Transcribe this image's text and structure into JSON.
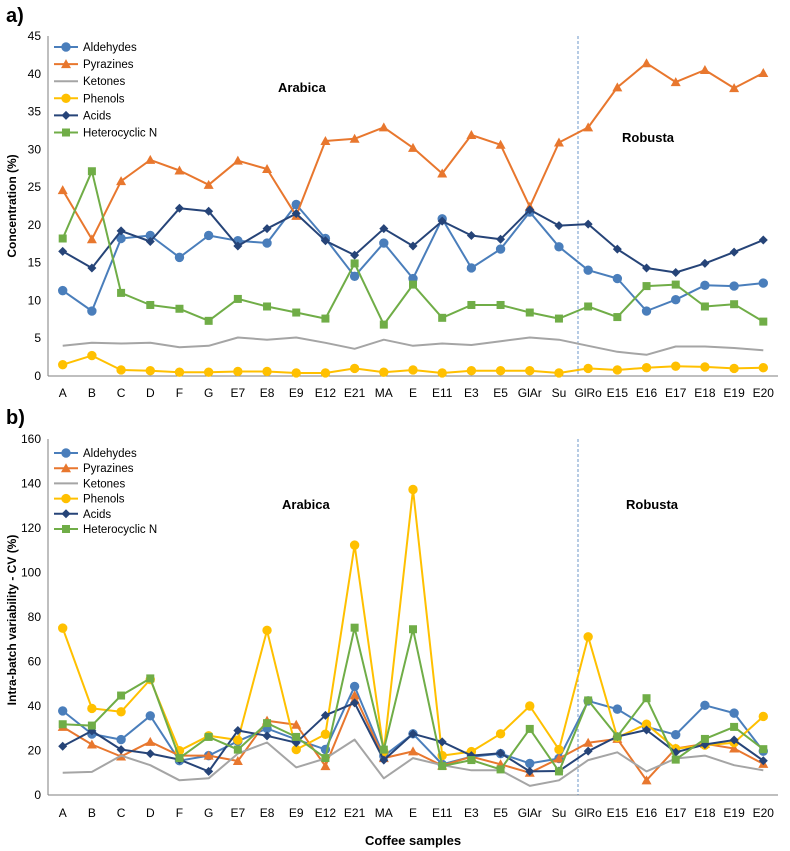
{
  "chart_data": [
    {
      "panel": "a)",
      "type": "line",
      "title": "",
      "xlabel": "",
      "ylabel": "Concentration (%)",
      "ylim": [
        0,
        45
      ],
      "yticks": [
        0,
        5,
        10,
        15,
        20,
        25,
        30,
        35,
        40,
        45
      ],
      "categories": [
        "A",
        "B",
        "C",
        "D",
        "F",
        "G",
        "E7",
        "E8",
        "E9",
        "E12",
        "E21",
        "MA",
        "E",
        "E11",
        "E3",
        "E5",
        "GlAr",
        "Su",
        "GlRo",
        "E15",
        "E16",
        "E17",
        "E18",
        "E19",
        "E20"
      ],
      "annotations": [
        "Arabica",
        "Robusta"
      ],
      "legend_position": "top-left",
      "series": [
        {
          "name": "Aldehydes",
          "color": "#4a7ebb",
          "marker": "circle",
          "values": [
            11.3,
            8.6,
            18.2,
            18.6,
            15.7,
            18.6,
            17.9,
            17.6,
            22.7,
            18.2,
            13.2,
            17.6,
            12.9,
            20.8,
            14.3,
            16.8,
            21.7,
            17.1,
            14.0,
            12.9,
            8.6,
            10.1,
            12.0,
            11.9,
            12.3
          ]
        },
        {
          "name": "Pyrazines",
          "color": "#e8772e",
          "marker": "triangle",
          "values": [
            24.6,
            18.1,
            25.8,
            28.6,
            27.2,
            25.3,
            28.5,
            27.4,
            21.2,
            31.1,
            31.4,
            32.9,
            30.2,
            26.8,
            31.9,
            30.6,
            22.4,
            30.9,
            32.9,
            38.2,
            41.4,
            38.9,
            40.5,
            38.1,
            40.1
          ]
        },
        {
          "name": "Ketones",
          "color": "#a5a5a5",
          "marker": "none",
          "values": [
            4.0,
            4.4,
            4.3,
            4.4,
            3.8,
            4.0,
            5.1,
            4.8,
            5.1,
            4.4,
            3.6,
            4.8,
            4.0,
            4.3,
            4.1,
            4.6,
            5.1,
            4.8,
            4.0,
            3.2,
            2.8,
            3.9,
            3.9,
            3.7,
            3.4
          ]
        },
        {
          "name": "Phenols",
          "color": "#ffc000",
          "marker": "circle",
          "values": [
            1.5,
            2.7,
            0.8,
            0.7,
            0.5,
            0.5,
            0.6,
            0.6,
            0.4,
            0.4,
            1.0,
            0.5,
            0.8,
            0.4,
            0.7,
            0.7,
            0.7,
            0.4,
            1.0,
            0.8,
            1.1,
            1.3,
            1.2,
            1.0,
            1.1
          ]
        },
        {
          "name": "Acids",
          "color": "#264478",
          "marker": "diamond",
          "values": [
            16.5,
            14.3,
            19.2,
            17.8,
            22.2,
            21.8,
            17.2,
            19.5,
            21.5,
            17.9,
            16.0,
            19.5,
            17.2,
            20.5,
            18.6,
            18.1,
            22.0,
            19.9,
            20.1,
            16.8,
            14.3,
            13.7,
            14.9,
            16.4,
            18.0
          ]
        },
        {
          "name": "Heterocyclic N",
          "color": "#70ad47",
          "marker": "square",
          "values": [
            18.2,
            27.1,
            11.0,
            9.4,
            8.9,
            7.3,
            10.2,
            9.2,
            8.4,
            7.6,
            14.9,
            6.8,
            12.1,
            7.7,
            9.4,
            9.4,
            8.4,
            7.6,
            9.2,
            7.8,
            11.9,
            12.1,
            9.2,
            9.5,
            7.2
          ]
        }
      ]
    },
    {
      "panel": "b)",
      "type": "line",
      "title": "",
      "xlabel": "Coffee samples",
      "ylabel": "Intra-batch variability - CV (%)",
      "ylim": [
        0,
        160
      ],
      "yticks": [
        0,
        20,
        40,
        60,
        80,
        100,
        120,
        140,
        160
      ],
      "categories": [
        "A",
        "B",
        "C",
        "D",
        "F",
        "G",
        "E7",
        "E8",
        "E9",
        "E12",
        "E21",
        "MA",
        "E",
        "E11",
        "E3",
        "E5",
        "GlAr",
        "Su",
        "GlRo",
        "E15",
        "E16",
        "E17",
        "E18",
        "E19",
        "E20"
      ],
      "annotations": [
        "Arabica",
        "Robusta"
      ],
      "legend_position": "top-left",
      "series": [
        {
          "name": "Aldehydes",
          "color": "#4a7ebb",
          "marker": "circle",
          "values": [
            37.8,
            27.4,
            24.9,
            35.6,
            15.4,
            17.7,
            24.2,
            29.9,
            25.0,
            20.5,
            48.8,
            17.5,
            27.5,
            13.8,
            17.2,
            18.6,
            14.2,
            16.4,
            42.3,
            38.6,
            30.6,
            27.1,
            40.3,
            36.8,
            19.7
          ]
        },
        {
          "name": "Pyrazines",
          "color": "#e8772e",
          "marker": "triangle",
          "values": [
            30.6,
            22.7,
            17.3,
            23.9,
            17.7,
            17.7,
            15.3,
            33.4,
            31.6,
            13.0,
            44.8,
            16.6,
            19.6,
            13.2,
            17.2,
            13.8,
            10.0,
            16.4,
            23.5,
            25.2,
            6.6,
            20.9,
            23.0,
            20.9,
            14.0
          ]
        },
        {
          "name": "Ketones",
          "color": "#a5a5a5",
          "marker": "none",
          "values": [
            10.0,
            10.4,
            17.7,
            13.4,
            6.6,
            7.5,
            18.6,
            23.6,
            12.4,
            16.4,
            24.9,
            7.5,
            16.6,
            13.4,
            11.1,
            11.1,
            4.1,
            6.6,
            15.7,
            19.2,
            10.6,
            16.4,
            17.7,
            13.4,
            11.1
          ]
        },
        {
          "name": "Phenols",
          "color": "#ffc000",
          "marker": "circle",
          "values": [
            75.0,
            38.9,
            37.4,
            51.9,
            19.9,
            26.6,
            24.7,
            74.0,
            20.4,
            27.3,
            112.3,
            19.5,
            137.3,
            17.7,
            19.5,
            27.5,
            40.0,
            20.4,
            71.1,
            25.9,
            31.8,
            20.8,
            22.4,
            23.5,
            35.3
          ]
        },
        {
          "name": "Acids",
          "color": "#264478",
          "marker": "diamond",
          "values": [
            21.9,
            28.8,
            20.4,
            18.6,
            15.9,
            10.6,
            29.0,
            26.6,
            23.5,
            35.8,
            41.4,
            15.7,
            27.5,
            23.9,
            17.7,
            18.8,
            10.6,
            10.8,
            19.7,
            26.3,
            29.2,
            19.2,
            22.7,
            24.7,
            15.4
          ]
        },
        {
          "name": "Heterocyclic N",
          "color": "#70ad47",
          "marker": "square",
          "values": [
            31.8,
            31.2,
            44.7,
            52.4,
            16.6,
            26.1,
            20.4,
            32.3,
            26.1,
            16.6,
            75.2,
            20.4,
            74.5,
            13.0,
            15.7,
            11.5,
            29.7,
            10.6,
            42.5,
            26.3,
            43.5,
            15.9,
            25.2,
            30.6,
            20.6
          ]
        }
      ]
    }
  ]
}
